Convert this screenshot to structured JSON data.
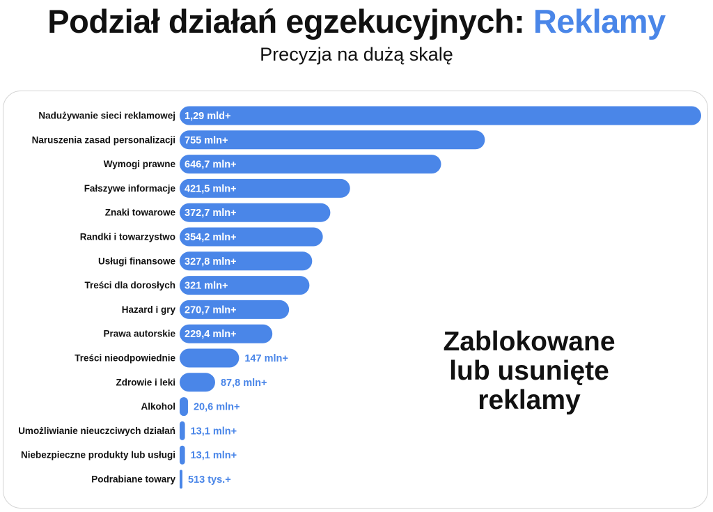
{
  "header": {
    "title_main": "Podział działań egzekucyjnych:",
    "title_accent": "Reklamy",
    "subtitle": "Precyzja na dużą skalę"
  },
  "annotation": {
    "line1": "Zablokowane",
    "line2": "lub usunięte",
    "line3": "reklamy"
  },
  "colors": {
    "accent": "#4a86e8",
    "text": "#111111",
    "card_border": "#d4d4d4"
  },
  "chart_data": {
    "type": "bar",
    "orientation": "horizontal",
    "title": "Podział działań egzekucyjnych: Reklamy",
    "subtitle": "Precyzja na dużą skalę",
    "categories": [
      "Nadużywanie sieci reklamowej",
      "Naruszenia zasad personalizacji",
      "Wymogi prawne",
      "Fałszywe informacje",
      "Znaki towarowe",
      "Randki i towarzystwo",
      "Usługi finansowe",
      "Treści dla dorosłych",
      "Hazard i gry",
      "Prawa autorskie",
      "Treści nieodpowiednie",
      "Zdrowie i leki",
      "Alkohol",
      "Umożliwianie nieuczciwych działań",
      "Niebezpieczne produkty lub usługi",
      "Podrabiane towary"
    ],
    "values": [
      1290,
      755,
      646.7,
      421.5,
      372.7,
      354.2,
      327.8,
      321,
      270.7,
      229.4,
      147,
      87.8,
      20.6,
      13.1,
      13.1,
      0.513
    ],
    "value_unit": "mln",
    "data_labels": [
      "1,29 mld+",
      "755 mln+",
      "646,7 mln+",
      "421,5 mln+",
      "372,7 mln+",
      "354,2 mln+",
      "327,8 mln+",
      "321 mln+",
      "270,7 mln+",
      "229,4 mln+",
      "147 mln+",
      "87,8 mln+",
      "20,6 mln+",
      "13,1 mln+",
      "13,1 mln+",
      "513 tys.+"
    ],
    "xlim": [
      0,
      1290
    ],
    "grid": false,
    "legend": "none",
    "annotation": "Zablokowane lub usunięte reklamy"
  }
}
